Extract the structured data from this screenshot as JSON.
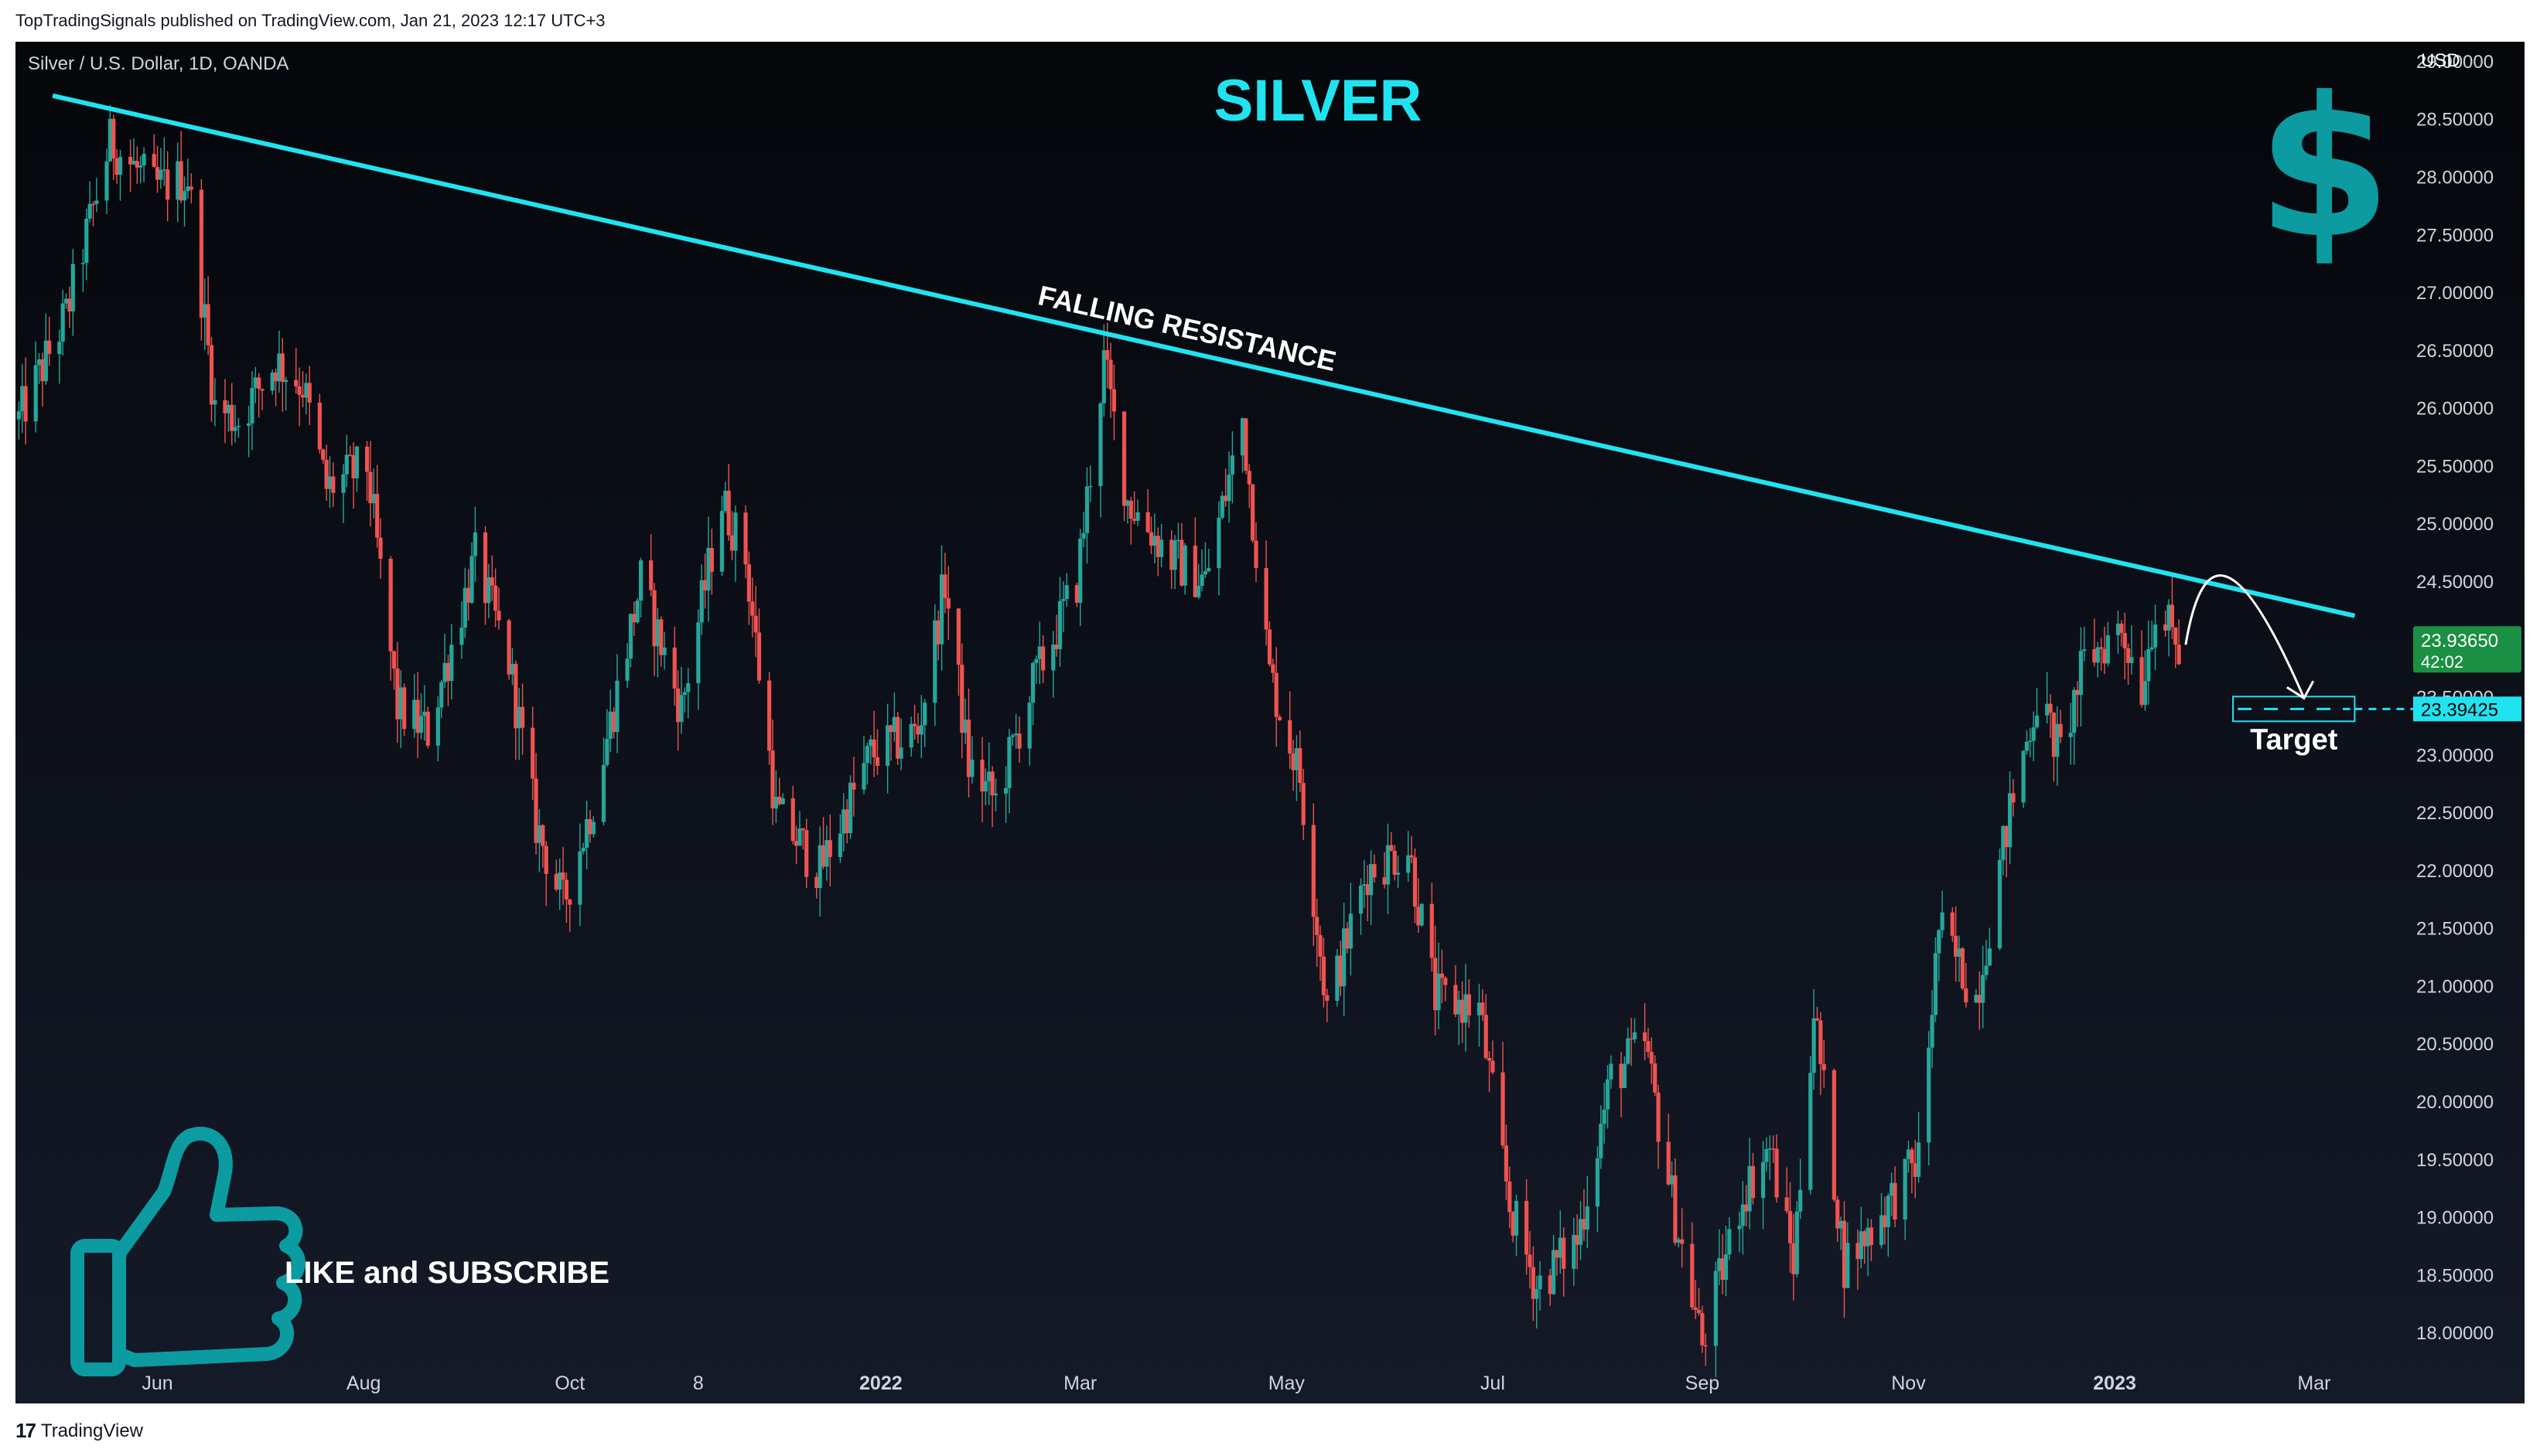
{
  "publisher_line": "TopTradingSignals published on TradingView.com, Jan 21, 2023 12:17 UTC+3",
  "footer_brand": "TradingView",
  "colors": {
    "background_top": "#05070b",
    "background_bottom": "#151a28",
    "up": "#26a69a",
    "down": "#ef5350",
    "trendline": "#21e3f0",
    "accent_teal": "#0b9ba0",
    "last_price_bg": "#1b8f43",
    "target_bg": "#21e3f0",
    "axis_text": "#d1d4dc"
  },
  "chart_data": {
    "type": "candlestick",
    "symbol_line": "Silver / U.S. Dollar, 1D, OANDA",
    "title": "SILVER",
    "currency_label": "USD",
    "ylim": [
      17.8,
      29.1
    ],
    "y_ticks": [
      "29.00000",
      "28.50000",
      "28.00000",
      "27.50000",
      "27.00000",
      "26.50000",
      "26.00000",
      "25.50000",
      "25.00000",
      "24.50000",
      "24.00000",
      "23.50000",
      "23.00000",
      "22.50000",
      "22.00000",
      "21.50000",
      "21.00000",
      "20.50000",
      "20.00000",
      "19.50000",
      "19.00000",
      "18.50000",
      "18.00000"
    ],
    "x_range": [
      "2021-04-20",
      "2023-03-20"
    ],
    "x_ticks": [
      {
        "date": "2021-06-01",
        "label": "Jun",
        "bold": false
      },
      {
        "date": "2021-08-01",
        "label": "Aug",
        "bold": false
      },
      {
        "date": "2021-10-01",
        "label": "Oct",
        "bold": false
      },
      {
        "date": "2021-11-08",
        "label": "8",
        "bold": false
      },
      {
        "date": "2022-01-01",
        "label": "2022",
        "bold": true
      },
      {
        "date": "2022-03-01",
        "label": "Mar",
        "bold": false
      },
      {
        "date": "2022-05-01",
        "label": "May",
        "bold": false
      },
      {
        "date": "2022-07-01",
        "label": "Jul",
        "bold": false
      },
      {
        "date": "2022-09-01",
        "label": "Sep",
        "bold": false
      },
      {
        "date": "2022-11-01",
        "label": "Nov",
        "bold": false
      },
      {
        "date": "2023-01-01",
        "label": "2023",
        "bold": true
      },
      {
        "date": "2023-03-01",
        "label": "Mar",
        "bold": false
      }
    ],
    "start_date": "2021-04-21",
    "end_date": "2023-01-20",
    "key_closes": [
      [
        "2021-04-21",
        25.9
      ],
      [
        "2021-05-05",
        26.8
      ],
      [
        "2021-05-18",
        28.3
      ],
      [
        "2021-05-31",
        27.9
      ],
      [
        "2021-06-10",
        28.0
      ],
      [
        "2021-06-18",
        26.0
      ],
      [
        "2021-06-25",
        25.9
      ],
      [
        "2021-07-06",
        26.4
      ],
      [
        "2021-07-14",
        26.2
      ],
      [
        "2021-07-21",
        25.3
      ],
      [
        "2021-08-02",
        25.5
      ],
      [
        "2021-08-11",
        23.4
      ],
      [
        "2021-08-20",
        23.2
      ],
      [
        "2021-09-03",
        24.7
      ],
      [
        "2021-09-13",
        23.8
      ],
      [
        "2021-09-21",
        22.4
      ],
      [
        "2021-09-29",
        21.7
      ],
      [
        "2021-10-08",
        22.6
      ],
      [
        "2021-10-22",
        24.5
      ],
      [
        "2021-11-03",
        23.4
      ],
      [
        "2021-11-15",
        25.2
      ],
      [
        "2021-11-22",
        24.7
      ],
      [
        "2021-12-01",
        22.5
      ],
      [
        "2021-12-14",
        22.0
      ],
      [
        "2021-12-29",
        23.0
      ],
      [
        "2022-01-12",
        23.2
      ],
      [
        "2022-01-20",
        24.5
      ],
      [
        "2022-01-27",
        22.9
      ],
      [
        "2022-02-04",
        22.6
      ],
      [
        "2022-02-15",
        23.6
      ],
      [
        "2022-02-28",
        24.5
      ],
      [
        "2022-03-08",
        26.4
      ],
      [
        "2022-03-15",
        25.2
      ],
      [
        "2022-03-28",
        24.7
      ],
      [
        "2022-04-07",
        24.5
      ],
      [
        "2022-04-18",
        25.9
      ],
      [
        "2022-04-26",
        23.7
      ],
      [
        "2022-05-05",
        22.8
      ],
      [
        "2022-05-13",
        20.8
      ],
      [
        "2022-05-25",
        22.0
      ],
      [
        "2022-06-06",
        22.2
      ],
      [
        "2022-06-14",
        20.9
      ],
      [
        "2022-06-27",
        20.8
      ],
      [
        "2022-07-06",
        19.1
      ],
      [
        "2022-07-14",
        18.4
      ],
      [
        "2022-07-26",
        18.8
      ],
      [
        "2022-08-05",
        20.2
      ],
      [
        "2022-08-15",
        20.5
      ],
      [
        "2022-08-24",
        19.0
      ],
      [
        "2022-09-01",
        17.9
      ],
      [
        "2022-09-13",
        19.2
      ],
      [
        "2022-09-21",
        19.6
      ],
      [
        "2022-09-28",
        18.6
      ],
      [
        "2022-10-04",
        20.8
      ],
      [
        "2022-10-13",
        18.6
      ],
      [
        "2022-10-21",
        18.9
      ],
      [
        "2022-11-04",
        19.5
      ],
      [
        "2022-11-10",
        21.5
      ],
      [
        "2022-11-21",
        20.9
      ],
      [
        "2022-12-01",
        22.5
      ],
      [
        "2022-12-09",
        23.5
      ],
      [
        "2022-12-16",
        23.0
      ],
      [
        "2022-12-23",
        23.8
      ],
      [
        "2023-01-03",
        24.1
      ],
      [
        "2023-01-09",
        23.6
      ],
      [
        "2023-01-13",
        24.3
      ],
      [
        "2023-01-20",
        23.9
      ]
    ],
    "trendline": {
      "label": "FALLING RESISTANCE",
      "start": {
        "date": "2021-05-01",
        "price": 28.7
      },
      "end": {
        "date": "2023-03-13",
        "price": 24.2
      }
    },
    "last_price": {
      "value": "23.93650",
      "countdown": "42:02",
      "price": 23.9365
    },
    "hidden_tick": "23.50000",
    "target": {
      "value": "23.39425",
      "label": "Target",
      "price": 23.39425,
      "date_from": "2023-02-05",
      "date_to": "2023-03-13"
    }
  },
  "overlays": {
    "dollar_symbol": "$",
    "cta": "LIKE and SUBSCRIBE"
  }
}
